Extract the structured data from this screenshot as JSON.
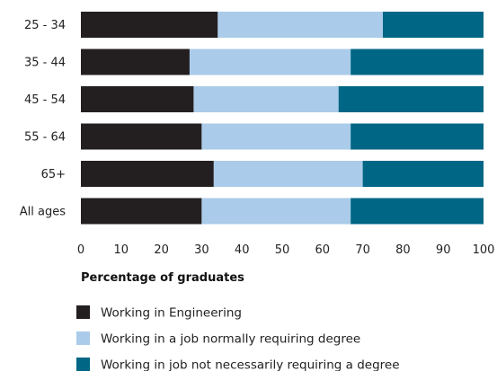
{
  "chart_data": {
    "type": "bar",
    "orientation": "horizontal",
    "stacked": true,
    "categories": [
      "25 - 34",
      "35 - 44",
      "45 - 54",
      "55 - 64",
      "65+",
      "All ages"
    ],
    "series": [
      {
        "name": "Working in Engineering",
        "color": "#231f20",
        "values": [
          34,
          27,
          28,
          30,
          33,
          30
        ]
      },
      {
        "name": "Working in a job normally requiring degree",
        "color": "#aacbe9",
        "values": [
          41,
          40,
          36,
          37,
          37,
          37
        ]
      },
      {
        "name": "Working in job not necessarily requiring a degree",
        "color": "#006685",
        "values": [
          25,
          33,
          36,
          33,
          30,
          33
        ]
      }
    ],
    "xlabel": "Percentage of graduates",
    "xlim": [
      0,
      100
    ],
    "xticks": [
      0,
      10,
      20,
      30,
      40,
      50,
      60,
      70,
      80,
      90,
      100
    ],
    "grid": false,
    "legend_position": "bottom-left"
  }
}
